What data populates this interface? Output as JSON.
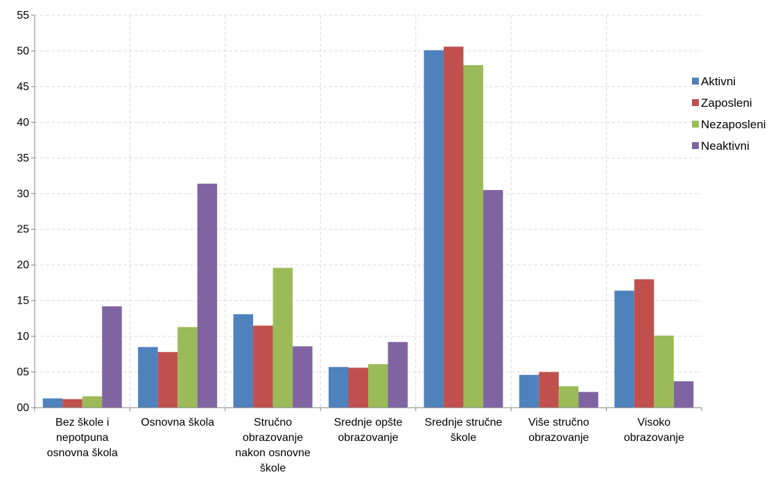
{
  "chart_data": {
    "type": "bar",
    "title": "",
    "xlabel": "",
    "ylabel": "",
    "ylim": [
      0,
      55
    ],
    "yticks": [
      "00",
      "05",
      "10",
      "15",
      "20",
      "25",
      "30",
      "35",
      "40",
      "45",
      "50",
      "55"
    ],
    "grid": true,
    "legend_position": "right",
    "categories": [
      [
        "Bez škole i",
        "nepotpuna",
        "osnovna škola"
      ],
      [
        "Osnovna škola"
      ],
      [
        "Stručno",
        "obrazovanje",
        "nakon osnovne",
        "škole"
      ],
      [
        "Srednje opšte",
        "obrazovanje"
      ],
      [
        "Srednje stručne",
        "škole"
      ],
      [
        "Više stručno",
        "obrazovanje"
      ],
      [
        "Visoko",
        "obrazovanje"
      ]
    ],
    "series": [
      {
        "name": "Aktivni",
        "color": "#4F81BD",
        "values": [
          1.3,
          8.5,
          13.1,
          5.7,
          50.1,
          4.6,
          16.4
        ]
      },
      {
        "name": "Zaposleni",
        "color": "#C0504D",
        "values": [
          1.2,
          7.8,
          11.5,
          5.6,
          50.6,
          5.0,
          18.0
        ]
      },
      {
        "name": "Nezaposleni",
        "color": "#9BBB59",
        "values": [
          1.6,
          11.3,
          19.6,
          6.1,
          48.0,
          3.0,
          10.1
        ]
      },
      {
        "name": "Neaktivni",
        "color": "#8064A2",
        "values": [
          14.2,
          31.4,
          8.6,
          9.2,
          30.5,
          2.2,
          3.7
        ]
      }
    ]
  }
}
